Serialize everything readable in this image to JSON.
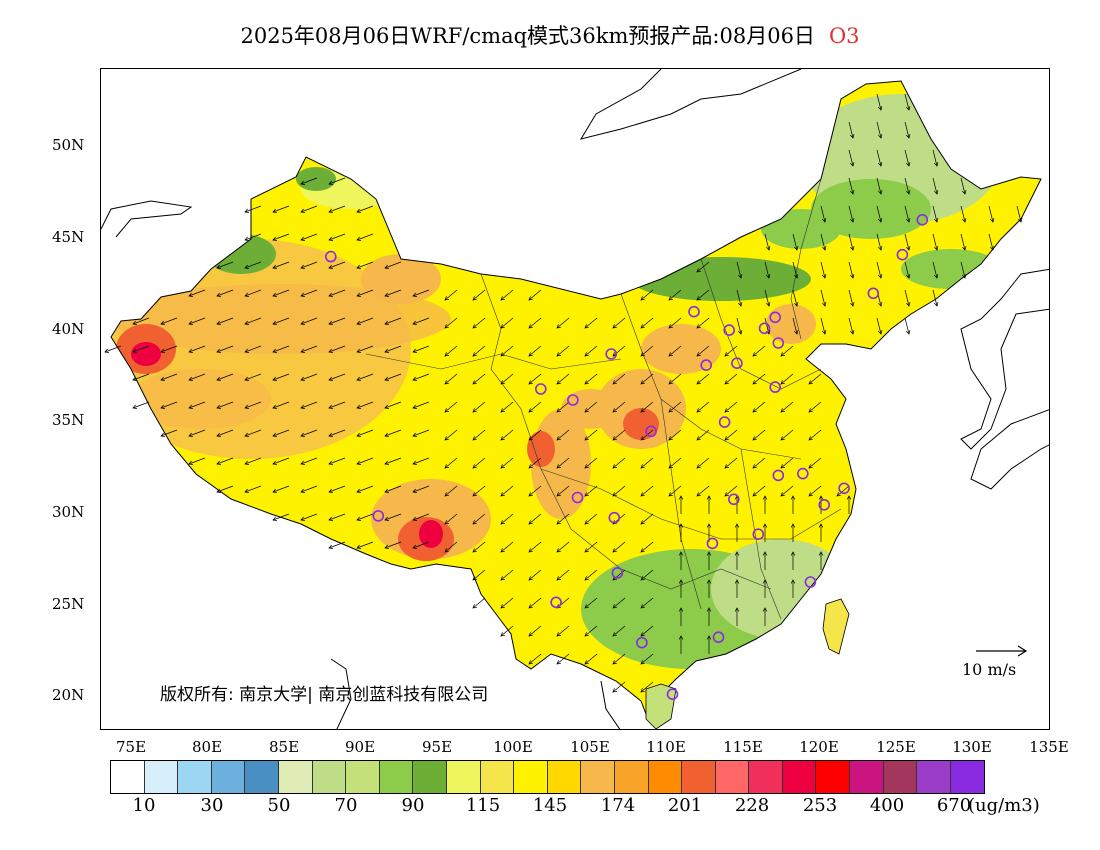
{
  "header": {
    "title": "2025年08月06日WRF/cmaq模式36km预报产品:08月06日",
    "pollutant": "O3"
  },
  "axes": {
    "lat_labels": [
      "50N",
      "45N",
      "40N",
      "35N",
      "30N",
      "25N",
      "20N"
    ],
    "lon_labels": [
      "75E",
      "80E",
      "85E",
      "90E",
      "95E",
      "100E",
      "105E",
      "110E",
      "115E",
      "120E",
      "125E",
      "130E",
      "135E"
    ]
  },
  "copyright": "版权所有: 南京大学| 南京创蓝科技有限公司",
  "wind_scale": "10 m/s",
  "colorbar": {
    "labels": [
      "10",
      "30",
      "50",
      "70",
      "90",
      "115",
      "145",
      "174",
      "201",
      "228",
      "253",
      "400",
      "670"
    ],
    "unit": "(ug/m3)",
    "colors": [
      "#ffffff",
      "#d6effa",
      "#9bd7f3",
      "#6cb0de",
      "#4a8fc4",
      "#dfecb6",
      "#bfdc87",
      "#c3e079",
      "#8ccc4a",
      "#6cae36",
      "#eef55d",
      "#f3e54a",
      "#fff200",
      "#ffd800",
      "#f6b84a",
      "#f8a428",
      "#ff8c00",
      "#f06030",
      "#ff6666",
      "#f0305a",
      "#ee0040",
      "#ff0000",
      "#cc1480",
      "#a3365c",
      "#9b3cc8",
      "#8a2be2"
    ]
  },
  "stations": [
    "88,43.8",
    "117,40.5",
    "114,39.8",
    "116.3,39.9",
    "117.2,39.1",
    "112.5,37.9",
    "114.5,38",
    "117,36.7",
    "123.4,41.8",
    "125.3,43.9",
    "126.6,45.8",
    "111.7,40.8",
    "106.3,38.5",
    "103.8,36",
    "101.7,36.6",
    "108.9,34.3",
    "113.7,34.8",
    "91.1,29.7",
    "104.1,30.7",
    "106.5,29.6",
    "106.7,26.6",
    "102.7,25",
    "108.3,22.8",
    "113.3,23.1",
    "110.3,20",
    "112.9,28.2",
    "115.9,28.7",
    "114.3,30.6",
    "117.2,31.9",
    "118.8,32",
    "120.2,30.3",
    "121.5,31.2",
    "119.3,26.1"
  ]
}
